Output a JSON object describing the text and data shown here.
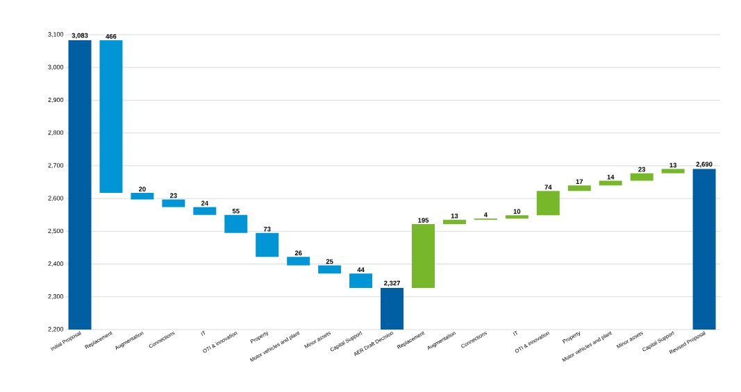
{
  "chart_data": {
    "type": "bar",
    "categories": [
      "Initial Proposal",
      "Replacement",
      "Augmentation",
      "Connections",
      "IT",
      "OTI & innovation",
      "Property",
      "Motor vehicles and plant",
      "Minor assets",
      "Capital Support",
      "AER Draft Decision",
      "Replacement",
      "Augmentation",
      "Connections",
      "IT",
      "OTI & innovation",
      "Property",
      "Motor vehicles and plant",
      "Minor assets",
      "Capital Support",
      "Revised Proposal"
    ],
    "values": [
      3083,
      -466,
      -20,
      -23,
      -24,
      -55,
      -73,
      -26,
      -25,
      -44,
      2327,
      195,
      13,
      4,
      10,
      74,
      17,
      14,
      23,
      13,
      2690
    ],
    "base": [
      null,
      3083,
      2617,
      2597,
      2574,
      2550,
      2495,
      2422,
      2396,
      2371,
      null,
      2327,
      2522,
      2535,
      2539,
      2549,
      2623,
      2640,
      2654,
      2677,
      null
    ],
    "value_labels": [
      "3,083",
      "466",
      "20",
      "23",
      "24",
      "55",
      "73",
      "26",
      "25",
      "44",
      "2,327",
      "195",
      "13",
      "4",
      "10",
      "74",
      "17",
      "14",
      "23",
      "13",
      "2,690"
    ],
    "colors": [
      "#005fa3",
      "#0096d6",
      "#0096d6",
      "#0096d6",
      "#0096d6",
      "#0096d6",
      "#0096d6",
      "#0096d6",
      "#0096d6",
      "#0096d6",
      "#005fa3",
      "#76b82a",
      "#76b82a",
      "#76b82a",
      "#76b82a",
      "#76b82a",
      "#76b82a",
      "#76b82a",
      "#76b82a",
      "#76b82a",
      "#005fa3"
    ],
    "ylim": [
      2200,
      3100
    ],
    "yticks": [
      {
        "value": 2200,
        "label": "2,200"
      },
      {
        "value": 2300,
        "label": "2,300"
      },
      {
        "value": 2400,
        "label": "2,400"
      },
      {
        "value": 2500,
        "label": "2,500"
      },
      {
        "value": 2600,
        "label": "2,600"
      },
      {
        "value": 2700,
        "label": "2,700"
      },
      {
        "value": 2800,
        "label": "2,800"
      },
      {
        "value": 2900,
        "label": "2,900"
      },
      {
        "value": 3000,
        "label": "3,000"
      },
      {
        "value": 3100,
        "label": "3,100"
      }
    ],
    "grid": "y"
  }
}
